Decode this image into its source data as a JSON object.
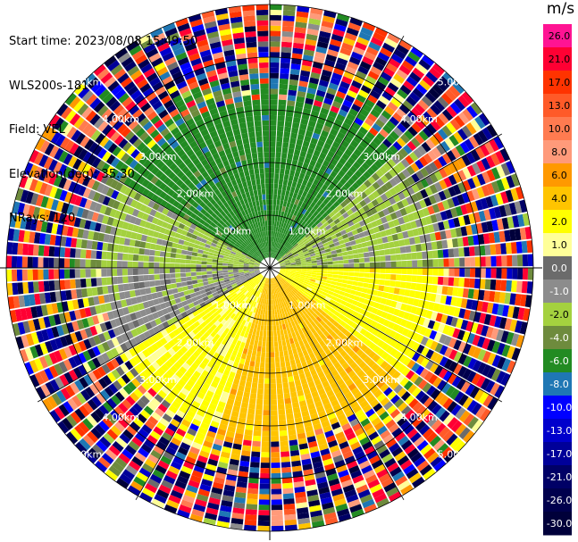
{
  "header": {
    "start_time": "Start time: 2023/08/08 15:49:50",
    "instrument": "WLS200s-181",
    "field": "Field: VEL",
    "elevation": "Elevation(deg): 35.30",
    "nrays": "NRays: 120"
  },
  "colorbar": {
    "unit": "m/s",
    "ticks": [
      "26.0",
      "21.0",
      "17.0",
      "13.0",
      "10.0",
      "8.0",
      "6.0",
      "4.0",
      "2.0",
      "1.0",
      "0.0",
      "-1.0",
      "-2.0",
      "-4.0",
      "-6.0",
      "-8.0",
      "-10.0",
      "-13.0",
      "-17.0",
      "-21.0",
      "-26.0",
      "-30.0"
    ],
    "colors": [
      "#ff1493",
      "#ff0033",
      "#ff3300",
      "#ff5a28",
      "#ff7b50",
      "#ff9a7a",
      "#ff9900",
      "#ffc400",
      "#ffff00",
      "#ffff99",
      "#6b6b6b",
      "#8c8c8c",
      "#a4d13f",
      "#6e8b3d",
      "#228b22",
      "#1f77b4",
      "#0000ff",
      "#0000cc",
      "#000099",
      "#000066",
      "#00004d",
      "#00003a"
    ]
  },
  "chart_data": {
    "type": "heatmap",
    "title": "",
    "projection": "PPI (polar)",
    "field": "VEL",
    "units": "m/s",
    "nrays": 120,
    "range_rings_km": [
      1.0,
      2.0,
      3.0,
      4.0,
      5.0
    ],
    "ring_labels": [
      "1.00km",
      "2.00km",
      "3.00km",
      "4.00km",
      "5.00km"
    ],
    "grid_spokes_deg": [
      0,
      30,
      60,
      90,
      120,
      150,
      180,
      210,
      240,
      270,
      300,
      330
    ],
    "color_range": [
      -30.0,
      26.0
    ],
    "data_summary": "Radial wind velocity: upper sector (north) mostly -6 to -4 m/s (green), west 0 to -2 m/s (gray/olive), south 2 to 8 m/s (yellow/orange/salmon), east 2 to 6 m/s (yellow/orange); outer ranges (>3.3 km) noisy with values spanning full scale."
  }
}
